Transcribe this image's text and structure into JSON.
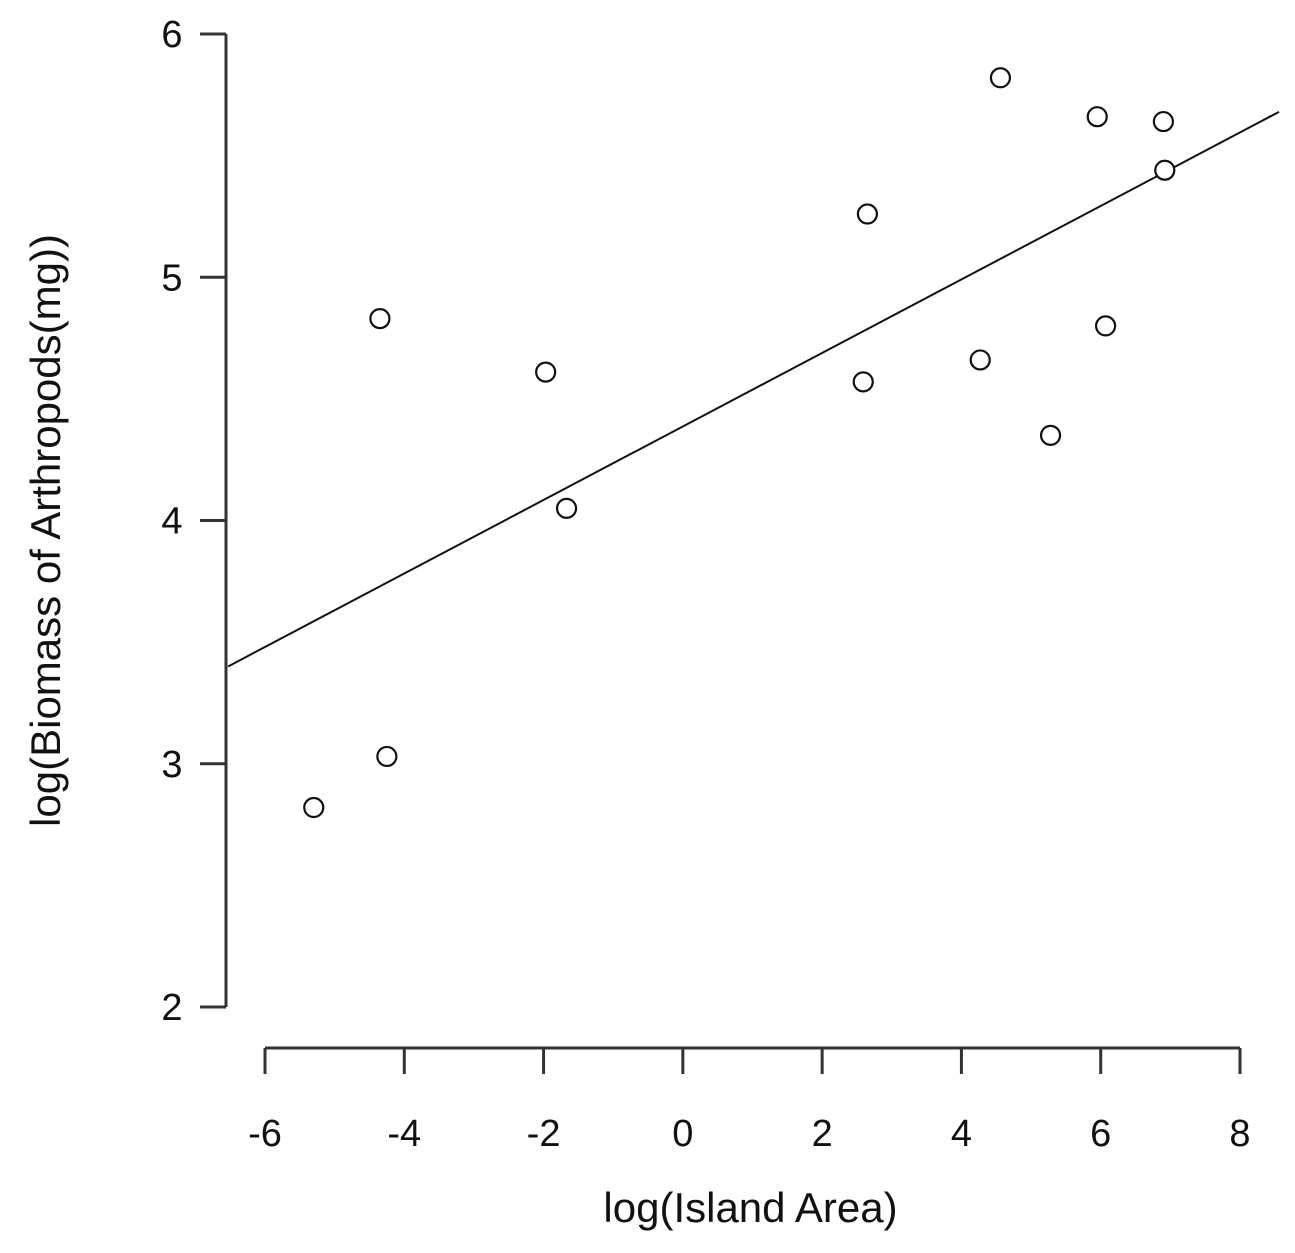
{
  "chart_data": {
    "type": "scatter",
    "title": "",
    "xlabel": "log(Island Area)",
    "ylabel": "log(Biomass of Arthropods(mg))",
    "xlim": [
      -6,
      8
    ],
    "ylim": [
      2,
      6
    ],
    "x_ticks": [
      -6,
      -4,
      -2,
      0,
      2,
      4,
      6,
      8
    ],
    "y_ticks": [
      2,
      3,
      4,
      5,
      6
    ],
    "x_tick_labels": [
      "-6",
      "-4",
      "-2",
      "0",
      "2",
      "4",
      "6",
      "8"
    ],
    "y_tick_labels": [
      "2",
      "3",
      "4",
      "5",
      "6"
    ],
    "grid": false,
    "series": [
      {
        "points": [
          {
            "x": -5.3,
            "y": 2.82
          },
          {
            "x": -4.25,
            "y": 3.03
          },
          {
            "x": -4.35,
            "y": 4.83
          },
          {
            "x": -1.97,
            "y": 4.61
          },
          {
            "x": -1.67,
            "y": 4.05
          },
          {
            "x": 2.59,
            "y": 4.57
          },
          {
            "x": 2.65,
            "y": 5.26
          },
          {
            "x": 4.27,
            "y": 4.66
          },
          {
            "x": 4.56,
            "y": 5.82
          },
          {
            "x": 5.28,
            "y": 4.35
          },
          {
            "x": 5.95,
            "y": 5.66
          },
          {
            "x": 6.07,
            "y": 4.8
          },
          {
            "x": 6.9,
            "y": 5.64
          },
          {
            "x": 6.92,
            "y": 5.44
          }
        ]
      }
    ],
    "fit_line": {
      "x_start": -6.53,
      "y_start": 3.4,
      "x_end": 8.56,
      "y_end": 5.68
    }
  }
}
